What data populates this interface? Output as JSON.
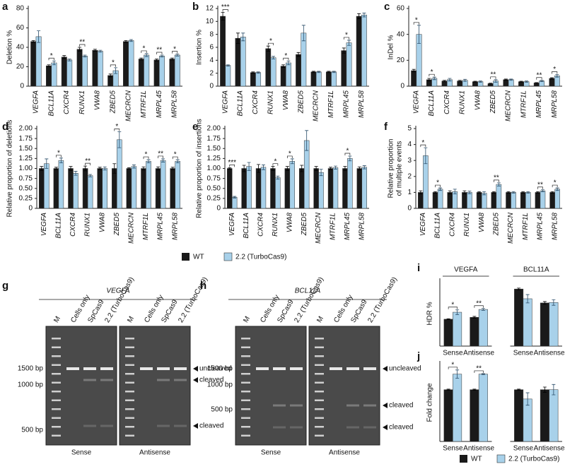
{
  "chart_data": [
    {
      "panel": "a",
      "type": "bar",
      "ylabel": "Deletion %",
      "categories": [
        "VEGFA",
        "BCL11A",
        "CXCR4",
        "RUNX1",
        "VWA8",
        "ZBED5",
        "MECRCN",
        "MTRF1L",
        "MRPL45",
        "MRPL58"
      ],
      "series": [
        {
          "name": "WT",
          "color": "#1a1a1a",
          "values": [
            46,
            21,
            30,
            38,
            37,
            11,
            46,
            28,
            27,
            28
          ],
          "errors": [
            1,
            1,
            1.5,
            2,
            1,
            1.5,
            1,
            1,
            1,
            1
          ]
        },
        {
          "name": "2.2 (TurboCas9)",
          "color": "#a8d1ea",
          "values": [
            51,
            24,
            27,
            31,
            36,
            16,
            47,
            32,
            31,
            32
          ],
          "errors": [
            6,
            2,
            1,
            1,
            1,
            3,
            1,
            1.5,
            1,
            1
          ]
        }
      ],
      "significance": [
        null,
        "*",
        null,
        "**",
        null,
        "*",
        null,
        "*",
        "**",
        "*"
      ],
      "ylim": [
        0,
        80
      ],
      "yticks": [
        0,
        20,
        40,
        60,
        80
      ]
    },
    {
      "panel": "b",
      "type": "bar",
      "ylabel": "Insertion %",
      "categories": [
        "VEGFA",
        "BCL11A",
        "CXCR4",
        "RUNX1",
        "VWA8",
        "ZBED5",
        "MECRCN",
        "MTRF1L",
        "MRPL45",
        "MRPL58"
      ],
      "series": [
        {
          "name": "WT",
          "color": "#1a1a1a",
          "values": [
            10.8,
            7.4,
            2.1,
            5.8,
            3.1,
            4.9,
            2.2,
            2.2,
            5.5,
            10.8
          ],
          "errors": [
            0.6,
            0.8,
            0.1,
            0.4,
            0.2,
            0.3,
            0.1,
            0.1,
            0.4,
            0.4
          ]
        },
        {
          "name": "2.2 (TurboCas9)",
          "color": "#a8d1ea",
          "values": [
            3.2,
            7.6,
            2.1,
            4.4,
            3.6,
            8.2,
            2.2,
            2.2,
            6.7,
            11.0
          ],
          "errors": [
            0.1,
            0.6,
            0.1,
            0.2,
            0.3,
            1.2,
            0.1,
            0.1,
            0.4,
            0.3
          ]
        }
      ],
      "significance": [
        "***",
        null,
        null,
        "*",
        "*",
        null,
        null,
        null,
        "*",
        null
      ],
      "ylim": [
        0,
        12
      ],
      "yticks": [
        0,
        2,
        4,
        6,
        8,
        10,
        12
      ]
    },
    {
      "panel": "c",
      "type": "bar",
      "ylabel": "InDel %",
      "categories": [
        "VEGFA",
        "BCL11A",
        "CXCR4",
        "RUNX1",
        "VWA8",
        "ZBED5",
        "MECRCN",
        "MTRF1L",
        "MRPL45",
        "MRPL58"
      ],
      "series": [
        {
          "name": "WT",
          "color": "#1a1a1a",
          "values": [
            12,
            5,
            4,
            4,
            3.5,
            2,
            5,
            3.5,
            2.5,
            6
          ],
          "errors": [
            1,
            1,
            0.5,
            0.5,
            0.3,
            0.3,
            0.5,
            0.3,
            0.3,
            0.5
          ]
        },
        {
          "name": "2.2 (TurboCas9)",
          "color": "#a8d1ea",
          "values": [
            40,
            6,
            5,
            4.5,
            3.5,
            4,
            5,
            3.5,
            4,
            8
          ],
          "errors": [
            7,
            1,
            1,
            0.8,
            0.5,
            1,
            0.5,
            0.5,
            0.5,
            1
          ]
        }
      ],
      "significance": [
        "*",
        "*",
        null,
        null,
        null,
        "**",
        null,
        null,
        "**",
        "*"
      ],
      "ylim": [
        0,
        60
      ],
      "yticks": [
        0,
        20,
        40,
        60
      ]
    },
    {
      "panel": "d",
      "type": "bar",
      "ylabel": "Relative proportion of deletions",
      "categories": [
        "VEGFA",
        "BCL11A",
        "CXCR4",
        "RUNX1",
        "VWA8",
        "ZBED5",
        "MECRCN",
        "MTRF1L",
        "MRPL45",
        "MRPL58"
      ],
      "series": [
        {
          "name": "WT",
          "color": "#1a1a1a",
          "values": [
            1,
            1,
            1,
            1,
            1,
            1,
            1,
            1,
            1,
            1
          ],
          "errors": [
            0.05,
            0.03,
            0.05,
            0.06,
            0.03,
            0.12,
            0.02,
            0.04,
            0.04,
            0.03
          ]
        },
        {
          "name": "2.2 (TurboCas9)",
          "color": "#a8d1ea",
          "values": [
            1.12,
            1.2,
            0.88,
            0.82,
            1.0,
            1.72,
            1.05,
            1.18,
            1.2,
            1.18
          ],
          "errors": [
            0.12,
            0.06,
            0.05,
            0.03,
            0.04,
            0.2,
            0.04,
            0.04,
            0.04,
            0.04
          ]
        }
      ],
      "significance": [
        null,
        "*",
        null,
        "**",
        null,
        "*",
        null,
        "*",
        "**",
        "*"
      ],
      "ylim": [
        0,
        2
      ],
      "yticks": [
        0,
        0.25,
        {
          "value": 0.5,
          "label": "0.50"
        },
        0.75,
        {
          "value": 1,
          "label": "1.00"
        },
        1.25,
        {
          "value": 1.5,
          "label": "1.50"
        },
        1.75,
        {
          "value": 2,
          "label": "2.00"
        }
      ]
    },
    {
      "panel": "e",
      "type": "bar",
      "ylabel": "Relative proportion of insertions",
      "categories": [
        "VEGFA",
        "BCL11A",
        "CXCR4",
        "RUNX1",
        "VWA8",
        "ZBED5",
        "MECRCN",
        "MTRF1L",
        "MRPL45",
        "MRPL58"
      ],
      "series": [
        {
          "name": "WT",
          "color": "#1a1a1a",
          "values": [
            1,
            1,
            1,
            1,
            1,
            1,
            1,
            1,
            1,
            1
          ],
          "errors": [
            0.02,
            0.08,
            0.1,
            0.05,
            0.05,
            0.08,
            0.05,
            0.03,
            0.05,
            0.04
          ]
        },
        {
          "name": "2.2 (TurboCas9)",
          "color": "#a8d1ea",
          "values": [
            0.28,
            1.05,
            1.03,
            0.77,
            1.18,
            1.7,
            0.9,
            1.02,
            1.25,
            1.03
          ],
          "errors": [
            0.02,
            0.1,
            0.06,
            0.04,
            0.06,
            0.25,
            0.08,
            0.04,
            0.06,
            0.04
          ]
        }
      ],
      "significance": [
        "***",
        null,
        null,
        "*",
        "*",
        null,
        null,
        null,
        "*",
        null
      ],
      "ylim": [
        0,
        2
      ],
      "yticks": [
        0,
        0.25,
        {
          "value": 0.5,
          "label": "0.50"
        },
        0.75,
        {
          "value": 1,
          "label": "1.00"
        },
        1.25,
        {
          "value": 1.5,
          "label": "1.50"
        },
        1.75,
        {
          "value": 2,
          "label": "2.00"
        }
      ]
    },
    {
      "panel": "f",
      "type": "bar",
      "ylabel": [
        "Relative proportion",
        "of multiple events"
      ],
      "categories": [
        "VEGFA",
        "BCL11A",
        "CXCR4",
        "RUNX1",
        "VWA8",
        "ZBED5",
        "MECRCN",
        "MTRF1L",
        "MRPL45",
        "MRPL58"
      ],
      "series": [
        {
          "name": "WT",
          "color": "#1a1a1a",
          "values": [
            1,
            1,
            1,
            1,
            1,
            1,
            1,
            1,
            1,
            1
          ],
          "errors": [
            0.1,
            0.05,
            0.1,
            0.1,
            0.05,
            0.05,
            0.05,
            0.05,
            0.05,
            0.05
          ]
        },
        {
          "name": "2.2 (TurboCas9)",
          "color": "#a8d1ea",
          "values": [
            3.3,
            1.2,
            1.05,
            1.0,
            0.95,
            1.5,
            1.0,
            1.0,
            1.1,
            1.2
          ],
          "errors": [
            0.5,
            0.08,
            0.15,
            0.08,
            0.1,
            0.1,
            0.05,
            0.05,
            0.06,
            0.08
          ]
        }
      ],
      "significance": [
        "*",
        "*",
        null,
        null,
        null,
        "**",
        null,
        null,
        "**",
        "*"
      ],
      "ylim": [
        0,
        5
      ],
      "yticks": [
        0,
        1,
        2,
        3,
        4,
        5
      ]
    },
    {
      "panel": "i",
      "type": "bar",
      "ylabel": "HDR %",
      "groups": [
        "VEGFA",
        "BCL11A"
      ],
      "categories": [
        "Sense",
        "Antisense",
        "Sense",
        "Antisense"
      ],
      "series": [
        {
          "name": "WT",
          "color": "#1a1a1a",
          "values": [
            5.8,
            6.2,
            12.3,
            9.3
          ],
          "errors": [
            0.1,
            0.2,
            0.2,
            0.3
          ]
        },
        {
          "name": "2.2 (TurboCas9)",
          "color": "#a8d1ea",
          "values": [
            7.3,
            7.9,
            10.2,
            9.4
          ],
          "errors": [
            0.5,
            0.2,
            0.9,
            0.6
          ]
        }
      ],
      "significance": [
        "*",
        "**",
        null,
        null
      ],
      "ylim": [
        0,
        14
      ]
    },
    {
      "panel": "j",
      "type": "bar",
      "ylabel": "Fold change",
      "categories": [
        "Sense",
        "Antisense",
        "Sense",
        "Antisense"
      ],
      "series": [
        {
          "name": "WT",
          "color": "#1a1a1a",
          "values": [
            1,
            1,
            1,
            1
          ],
          "errors": [
            0.01,
            0.01,
            0.01,
            0.05
          ]
        },
        {
          "name": "2.2 (TurboCas9)",
          "color": "#a8d1ea",
          "values": [
            1.3,
            1.3,
            0.82,
            1.0
          ],
          "errors": [
            0.08,
            0.01,
            0.12,
            0.1
          ]
        }
      ],
      "significance": [
        "*",
        "**",
        null,
        null
      ],
      "ylim": [
        0,
        1.5
      ]
    }
  ],
  "gels": [
    {
      "panel": "g",
      "title": "VEGFA",
      "lanes": [
        "M",
        "Cells only",
        "SpCas9",
        "2.2 (TurboCas9)",
        "M",
        "Cells only",
        "SpCas9",
        "2.2 (TurboCas9)"
      ],
      "sides": [
        "Sense",
        "Antisense"
      ],
      "markers": [
        "1500 bp",
        "1000 bp",
        "500 bp"
      ],
      "bands": [
        "uncleaved",
        "cleaved",
        "cleaved"
      ]
    },
    {
      "panel": "h",
      "title": "BCL11A",
      "lanes": [
        "M",
        "Cells only",
        "SpCas9",
        "2.2 (TurboCas9)",
        "M",
        "Cells only",
        "SpCas9",
        "2.2 (TurboCas9)"
      ],
      "sides": [
        "Sense",
        "Antisense"
      ],
      "markers": [
        "1500 bp",
        "1000 bp",
        "500 bp"
      ],
      "bands": [
        "uncleaved",
        "cleaved",
        "cleaved"
      ]
    }
  ]
}
